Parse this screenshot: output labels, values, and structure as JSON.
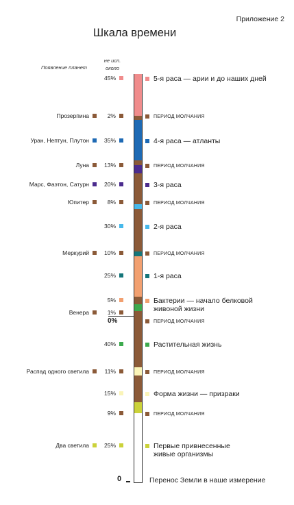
{
  "header": {
    "appendix": "Приложение 2",
    "title": "Шкала времени",
    "planets_header": "Появление планет",
    "percent_header": "не исп. около"
  },
  "segments": [
    {
      "color": "#F08C8C",
      "percent": "45%",
      "planet": "",
      "label": "5-я раса — арии и до наших дней",
      "type": "race"
    },
    {
      "color": "#8B5A38",
      "percent": "2%",
      "planet": "Прозерпина",
      "label": "ПЕРИОД МОЛЧАНИЯ",
      "type": "silence"
    },
    {
      "color": "#1E6AB4",
      "percent": "35%",
      "planet": "Уран, Нептун, Плутон",
      "label": "4-я раса — атланты",
      "type": "race"
    },
    {
      "color": "#8B5A38",
      "percent": "13%",
      "planet": "Луна",
      "label": "ПЕРИОД МОЛЧАНИЯ",
      "type": "silence"
    },
    {
      "color": "#4B2C8E",
      "percent": "20%",
      "planet": "Марс, Фаэтон, Сатурн",
      "label": "3-я раса",
      "type": "race"
    },
    {
      "color": "#8B5A38",
      "percent": "8%",
      "planet": "Юпитер",
      "label": "ПЕРИОД МОЛЧАНИЯ",
      "type": "silence"
    },
    {
      "color": "#47B9EB",
      "percent": "30%",
      "planet": "",
      "label": "2-я раса",
      "type": "race"
    },
    {
      "color": "#8B5A38",
      "percent": "10%",
      "planet": "Меркурий",
      "label": "ПЕРИОД МОЛЧАНИЯ",
      "type": "silence"
    },
    {
      "color": "#15767A",
      "percent": "25%",
      "planet": "",
      "label": "1-я раса",
      "type": "race"
    },
    {
      "color": "#F2A070",
      "percent": "5%",
      "planet": "",
      "label": "Бактерии — начало белковой",
      "label2": "живоной жизни",
      "type": "race"
    },
    {
      "color": "#8B5A38",
      "percent": "1%",
      "planet": "Венера",
      "label": "",
      "type": "silence"
    },
    {
      "color": "#3DAA4E",
      "percent": "40%",
      "planet": "",
      "label": "Растительная жизнь",
      "type": "race"
    },
    {
      "color": "#8B5A38",
      "percent": "11%",
      "planet": "Распад одного светила",
      "label": "ПЕРИОД МОЛЧАНИЯ",
      "type": "silence"
    },
    {
      "color": "#FAF4B8",
      "percent": "15%",
      "planet": "",
      "label": "Форма жизни — призраки",
      "type": "race"
    },
    {
      "color": "#8B5A38",
      "percent": "9%",
      "planet": "",
      "label": "ПЕРИОД МОЛЧАНИЯ",
      "type": "silence"
    },
    {
      "color": "#CBD23A",
      "percent": "25%",
      "planet": "Два светила",
      "label": "Первые привнесенные",
      "label2": "живые организмы",
      "type": "race"
    }
  ],
  "extra_labels": {
    "venus_silence": "ПЕРИОД МОЛЧАНИЯ",
    "zero_pct": "0%",
    "zero_end": "0",
    "final_label": "Перенос Земли в наше измерение"
  }
}
